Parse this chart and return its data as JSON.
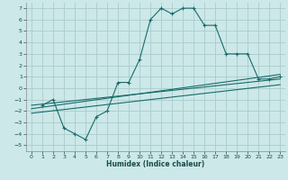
{
  "xlabel": "Humidex (Indice chaleur)",
  "bg_color": "#cce8e8",
  "grid_color": "#aacccc",
  "line_color": "#1a6b6b",
  "xlim": [
    -0.5,
    23.5
  ],
  "ylim": [
    -5.5,
    7.5
  ],
  "xticks": [
    0,
    1,
    2,
    3,
    4,
    5,
    6,
    7,
    8,
    9,
    10,
    11,
    12,
    13,
    14,
    15,
    16,
    17,
    18,
    19,
    20,
    21,
    22,
    23
  ],
  "yticks": [
    -5,
    -4,
    -3,
    -2,
    -1,
    0,
    1,
    2,
    3,
    4,
    5,
    6,
    7
  ],
  "main_x": [
    1,
    2,
    3,
    4,
    5,
    6,
    7,
    8,
    9,
    10,
    11,
    12,
    13,
    14,
    15,
    16,
    17,
    18,
    19,
    20,
    21,
    22,
    23
  ],
  "main_y": [
    -1.5,
    -1.0,
    -3.5,
    -4.0,
    -4.5,
    -2.5,
    -2.0,
    0.5,
    0.5,
    2.5,
    6.0,
    7.0,
    6.5,
    7.0,
    7.0,
    5.5,
    5.5,
    3.0,
    3.0,
    3.0,
    0.8,
    0.8,
    1.0
  ],
  "line1_x": [
    0,
    23
  ],
  "line1_y": [
    -1.8,
    1.2
  ],
  "line2_x": [
    0,
    23
  ],
  "line2_y": [
    -1.5,
    0.8
  ],
  "line3_x": [
    0,
    23
  ],
  "line3_y": [
    -2.2,
    0.3
  ]
}
